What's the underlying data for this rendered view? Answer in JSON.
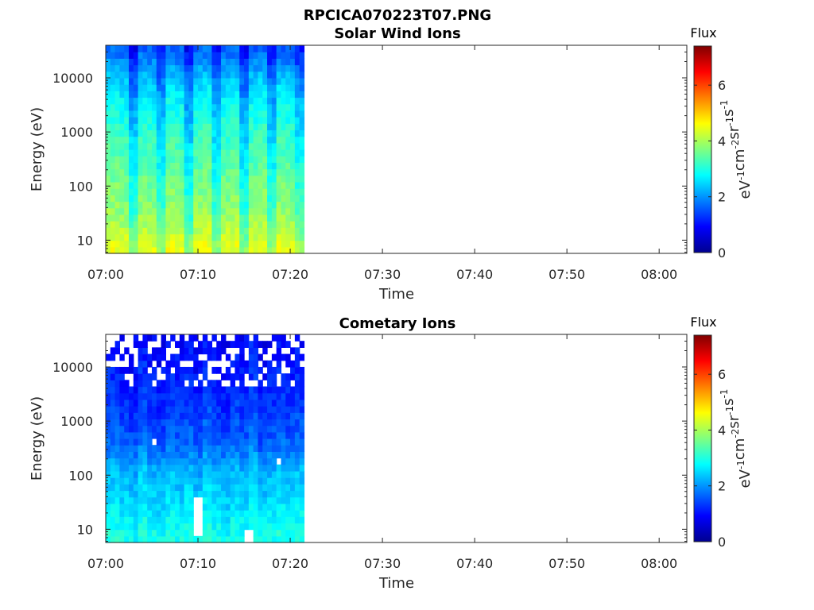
{
  "figure": {
    "title": "RPCICA070223T07.PNG",
    "colorbar_cmap": "jet"
  },
  "chart_data": [
    {
      "type": "heatmap",
      "title": "Solar Wind Ions",
      "xlabel": "Time",
      "ylabel": "Energy (eV)",
      "xlim": [
        "07:00",
        "08:03"
      ],
      "ylim": [
        5.7,
        40000
      ],
      "y_scale": "log",
      "xticks": [
        "07:00",
        "07:10",
        "07:20",
        "07:30",
        "07:40",
        "07:50",
        "08:00"
      ],
      "yticks": [
        "10",
        "100",
        "1000",
        "10000"
      ],
      "data_time_range": [
        "07:00",
        "07:21.5"
      ],
      "colorbar": {
        "title": "Flux",
        "label_base": "eV",
        "label_exps": [
          "-1",
          "-2",
          "-1",
          "-1"
        ],
        "label_units": [
          "cm",
          "sr",
          "s"
        ],
        "range": [
          0,
          7.4
        ],
        "ticks": [
          "0",
          "2",
          "4",
          "6"
        ]
      },
      "flux_profile": {
        "log_energy": [
          0.9,
          1.5,
          2.2,
          2.8,
          3.5,
          4.0,
          4.6
        ],
        "flux": [
          4.3,
          3.7,
          3.4,
          3.1,
          2.7,
          2.2,
          1.4
        ]
      },
      "column_modulation": [
        0.2,
        0.1,
        -0.6,
        0.15,
        0.1,
        -0.5,
        0.2,
        0.1,
        -0.6,
        0.15,
        0.25,
        -0.5,
        0.1,
        0.2,
        -0.6,
        0.1,
        0.2,
        -0.5,
        0.15,
        0.1,
        -0.4
      ],
      "gaps": []
    },
    {
      "type": "heatmap",
      "title": "Cometary Ions",
      "xlabel": "Time",
      "ylabel": "Energy (eV)",
      "xlim": [
        "07:00",
        "08:03"
      ],
      "ylim": [
        5.7,
        40000
      ],
      "y_scale": "log",
      "xticks": [
        "07:00",
        "07:10",
        "07:20",
        "07:30",
        "07:40",
        "07:50",
        "08:00"
      ],
      "yticks": [
        "10",
        "100",
        "1000",
        "10000"
      ],
      "data_time_range": [
        "07:00",
        "07:21.5"
      ],
      "colorbar": {
        "title": "Flux",
        "label_base": "eV",
        "label_exps": [
          "-1",
          "-2",
          "-1",
          "-1"
        ],
        "label_units": [
          "cm",
          "sr",
          "s"
        ],
        "range": [
          0,
          7.4
        ],
        "ticks": [
          "0",
          "2",
          "4",
          "6"
        ]
      },
      "flux_profile": {
        "log_energy": [
          0.9,
          1.5,
          2.1,
          2.6,
          3.2,
          3.8,
          4.5
        ],
        "flux": [
          2.9,
          2.5,
          2.2,
          1.6,
          1.3,
          1.1,
          0.9
        ]
      },
      "column_modulation": [
        0.1,
        0.0,
        -0.1,
        0.2,
        0.0,
        -0.1,
        0.1,
        0.0,
        0.1,
        -0.1,
        0.2,
        0.0,
        -0.1,
        0.1,
        0.0,
        0.2,
        -0.1,
        0.0,
        0.1,
        0.0,
        0.1
      ],
      "gaps": [
        {
          "t": [
            "07:09.7",
            "07:10.3"
          ],
          "log_e": [
            0.9,
            1.55
          ]
        },
        {
          "t": [
            "07:15.2",
            "07:15.8"
          ],
          "log_e": [
            0.76,
            1.05
          ]
        },
        {
          "t": [
            "07:05.0",
            "07:05.6"
          ],
          "log_e": [
            2.55,
            2.62
          ]
        },
        {
          "t": [
            "07:18.5",
            "07:19.1"
          ],
          "log_e": [
            2.25,
            2.32
          ]
        },
        {
          "t": [
            "07:03.0",
            "07:03.6"
          ],
          "log_e": [
            3.6,
            3.67
          ]
        },
        {
          "t": [
            "07:11.8",
            "07:12.4"
          ],
          "log_e": [
            3.98,
            4.06
          ]
        },
        {
          "t": [
            "07:02.0",
            "07:02.6"
          ],
          "log_e": [
            4.38,
            4.45
          ]
        }
      ],
      "sparse_above_log_energy": 3.6
    }
  ]
}
